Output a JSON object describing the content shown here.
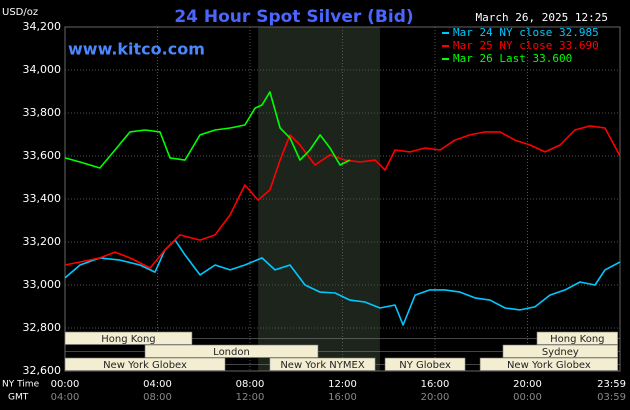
{
  "chart_data": {
    "type": "line",
    "title": "24 Hour Spot Silver (Bid)",
    "timestamp": "March 26, 2025 12:25",
    "unit_label": "USD/oz",
    "site": "www.kitco.com",
    "xlim": [
      0,
      24
    ],
    "ylim": [
      32600,
      34200
    ],
    "yticks": [
      {
        "value": 32600,
        "label": "32,600"
      },
      {
        "value": 32800,
        "label": "32,800"
      },
      {
        "value": 33000,
        "label": "33,000"
      },
      {
        "value": 33200,
        "label": "33,200"
      },
      {
        "value": 33400,
        "label": "33,400"
      },
      {
        "value": 33600,
        "label": "33,600"
      },
      {
        "value": 33800,
        "label": "33,800"
      },
      {
        "value": 34000,
        "label": "34,000"
      },
      {
        "value": 34200,
        "label": "34,200"
      }
    ],
    "xticks": [
      {
        "value": 0,
        "label": "00:00"
      },
      {
        "value": 4,
        "label": "04:00"
      },
      {
        "value": 8,
        "label": "08:00"
      },
      {
        "value": 12,
        "label": "12:00"
      },
      {
        "value": 16,
        "label": "16:00"
      },
      {
        "value": 20,
        "label": "20:00"
      },
      {
        "value": 24,
        "label": "23:59"
      }
    ],
    "x_row_label": "NY Time",
    "gmt_row_label": "GMT",
    "gmt_labels": [
      "04:00",
      "08:00",
      "12:00",
      "16:00",
      "20:00",
      "00:00",
      "03:59"
    ],
    "grid": true,
    "highlight": [
      8.35,
      13.62
    ],
    "session_rows": [
      [
        {
          "label": "Hong Kong",
          "start": 0,
          "end": 5.49
        },
        {
          "label": "Hong Kong",
          "start": 20.41,
          "end": 23.9
        }
      ],
      [
        {
          "label": "London",
          "start": 3.46,
          "end": 10.94
        },
        {
          "label": "Sydney",
          "start": 18.94,
          "end": 23.9
        }
      ],
      [
        {
          "label": "New York Globex",
          "start": 0,
          "end": 6.92
        },
        {
          "label": "New York NYMEX",
          "start": 8.86,
          "end": 13.41
        },
        {
          "label": "NY Globex",
          "start": 13.84,
          "end": 17.3
        },
        {
          "label": "New York Globex",
          "start": 17.95,
          "end": 23.9
        }
      ]
    ],
    "series": [
      {
        "name": "Mar 24 NY close 32.985",
        "color": "#00c8ff",
        "x": [
          0,
          0.65,
          1.51,
          2.38,
          3.24,
          3.89,
          4.32,
          4.76,
          5.19,
          5.84,
          6.49,
          7.14,
          7.78,
          8.52,
          9.08,
          9.73,
          10.38,
          11.03,
          11.68,
          12.32,
          12.97,
          13.62,
          14.27,
          14.62,
          15.14,
          15.78,
          16.43,
          17.08,
          17.73,
          18.38,
          19.03,
          19.68,
          20.32,
          20.97,
          21.62,
          22.27,
          22.92,
          23.35,
          24
        ],
        "values": [
          33033,
          33093,
          33126,
          33116,
          33093,
          33060,
          33163,
          33209,
          33140,
          33047,
          33093,
          33070,
          33093,
          33126,
          33070,
          33093,
          33000,
          32967,
          32963,
          32930,
          32921,
          32893,
          32907,
          32814,
          32953,
          32977,
          32977,
          32967,
          32940,
          32930,
          32893,
          32884,
          32898,
          32953,
          32977,
          33014,
          33000,
          33070,
          33107
        ]
      },
      {
        "name": "Mar 25 NY close 33.690",
        "color": "#ff0000",
        "x": [
          0,
          0.65,
          1.51,
          2.16,
          2.81,
          3.68,
          4.32,
          4.97,
          5.84,
          6.49,
          7.14,
          7.78,
          8.35,
          8.86,
          9.3,
          9.73,
          10.16,
          10.81,
          11.46,
          12.11,
          12.76,
          13.41,
          13.84,
          14.27,
          14.92,
          15.57,
          16.22,
          16.86,
          17.51,
          18.16,
          18.81,
          19.46,
          20.11,
          20.76,
          21.41,
          22.05,
          22.7,
          23.35,
          24
        ],
        "values": [
          33093,
          33107,
          33126,
          33153,
          33126,
          33079,
          33163,
          33233,
          33209,
          33233,
          33326,
          33465,
          33395,
          33442,
          33581,
          33698,
          33651,
          33558,
          33605,
          33581,
          33572,
          33581,
          33535,
          33628,
          33619,
          33637,
          33628,
          33674,
          33698,
          33712,
          33712,
          33674,
          33651,
          33619,
          33651,
          33721,
          33740,
          33730,
          33600
        ]
      },
      {
        "name": "Mar 26 Last 33.600",
        "color": "#00ff00",
        "x": [
          0,
          0.65,
          1.51,
          2.16,
          2.81,
          3.46,
          4.11,
          4.54,
          5.19,
          5.84,
          6.49,
          7.14,
          7.78,
          8.22,
          8.52,
          8.86,
          9.3,
          9.73,
          10.16,
          10.59,
          11.03,
          11.46,
          11.89,
          12.32
        ],
        "values": [
          33591,
          33572,
          33544,
          33628,
          33712,
          33721,
          33712,
          33591,
          33581,
          33698,
          33721,
          33730,
          33744,
          33823,
          33837,
          33898,
          33730,
          33684,
          33581,
          33628,
          33698,
          33637,
          33558,
          33581
        ]
      }
    ]
  }
}
